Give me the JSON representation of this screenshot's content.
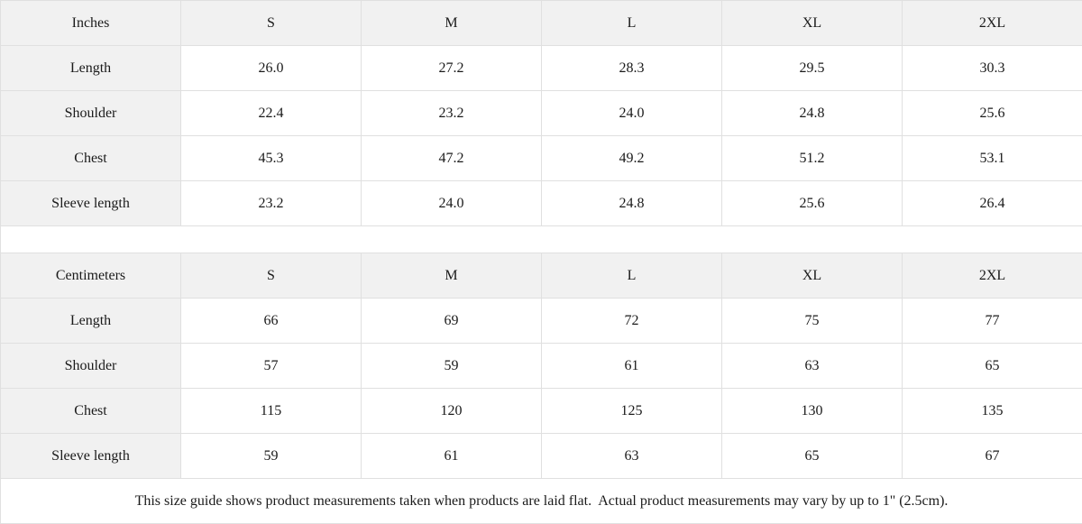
{
  "colors": {
    "header_bg": "#f1f1f1",
    "border": "#e0e0e0",
    "cell_bg": "#ffffff",
    "text": "#1a1a1a"
  },
  "inches_table": {
    "header": [
      "Inches",
      "S",
      "M",
      "L",
      "XL",
      "2XL"
    ],
    "rows": [
      {
        "label": "Length",
        "values": [
          "26.0",
          "27.2",
          "28.3",
          "29.5",
          "30.3"
        ]
      },
      {
        "label": "Shoulder",
        "values": [
          "22.4",
          "23.2",
          "24.0",
          "24.8",
          "25.6"
        ]
      },
      {
        "label": "Chest",
        "values": [
          "45.3",
          "47.2",
          "49.2",
          "51.2",
          "53.1"
        ]
      },
      {
        "label": "Sleeve length",
        "values": [
          "23.2",
          "24.0",
          "24.8",
          "25.6",
          "26.4"
        ]
      }
    ]
  },
  "centimeters_table": {
    "header": [
      "Centimeters",
      "S",
      "M",
      "L",
      "XL",
      "2XL"
    ],
    "rows": [
      {
        "label": "Length",
        "values": [
          "66",
          "69",
          "72",
          "75",
          "77"
        ]
      },
      {
        "label": "Shoulder",
        "values": [
          "57",
          "59",
          "61",
          "63",
          "65"
        ]
      },
      {
        "label": "Chest",
        "values": [
          "115",
          "120",
          "125",
          "130",
          "135"
        ]
      },
      {
        "label": "Sleeve length",
        "values": [
          "59",
          "61",
          "63",
          "65",
          "67"
        ]
      }
    ]
  },
  "footer_note": "This size guide shows product measurements taken when products are laid flat.  Actual product measurements may vary by up to 1\" (2.5cm)."
}
